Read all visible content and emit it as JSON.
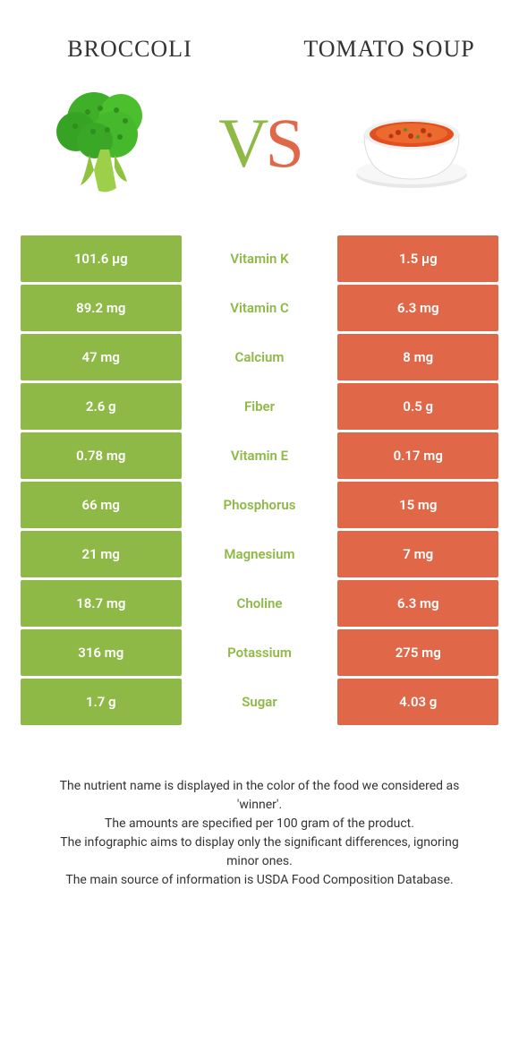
{
  "colors": {
    "green": "#8fb946",
    "orange": "#e06849",
    "text": "#333333",
    "white": "#ffffff"
  },
  "left_food": {
    "title": "Broccoli"
  },
  "right_food": {
    "title": "Tomato Soup"
  },
  "vs": {
    "v": "V",
    "s": "S"
  },
  "rows": [
    {
      "nutrient": "Vitamin K",
      "left": "101.6 µg",
      "right": "1.5 µg",
      "winner": "left"
    },
    {
      "nutrient": "Vitamin C",
      "left": "89.2 mg",
      "right": "6.3 mg",
      "winner": "left"
    },
    {
      "nutrient": "Calcium",
      "left": "47 mg",
      "right": "8 mg",
      "winner": "left"
    },
    {
      "nutrient": "Fiber",
      "left": "2.6 g",
      "right": "0.5 g",
      "winner": "left"
    },
    {
      "nutrient": "Vitamin E",
      "left": "0.78 mg",
      "right": "0.17 mg",
      "winner": "left"
    },
    {
      "nutrient": "Phosphorus",
      "left": "66 mg",
      "right": "15 mg",
      "winner": "left"
    },
    {
      "nutrient": "Magnesium",
      "left": "21 mg",
      "right": "7 mg",
      "winner": "left"
    },
    {
      "nutrient": "Choline",
      "left": "18.7 mg",
      "right": "6.3 mg",
      "winner": "left"
    },
    {
      "nutrient": "Potassium",
      "left": "316 mg",
      "right": "275 mg",
      "winner": "left"
    },
    {
      "nutrient": "Sugar",
      "left": "1.7 g",
      "right": "4.03 g",
      "winner": "left"
    }
  ],
  "notes": [
    "The nutrient name is displayed in the color of the food we considered as 'winner'.",
    "The amounts are specified per 100 gram of the product.",
    "The infographic aims to display only the significant differences, ignoring minor ones.",
    "The main source of information is USDA Food Composition Database."
  ]
}
